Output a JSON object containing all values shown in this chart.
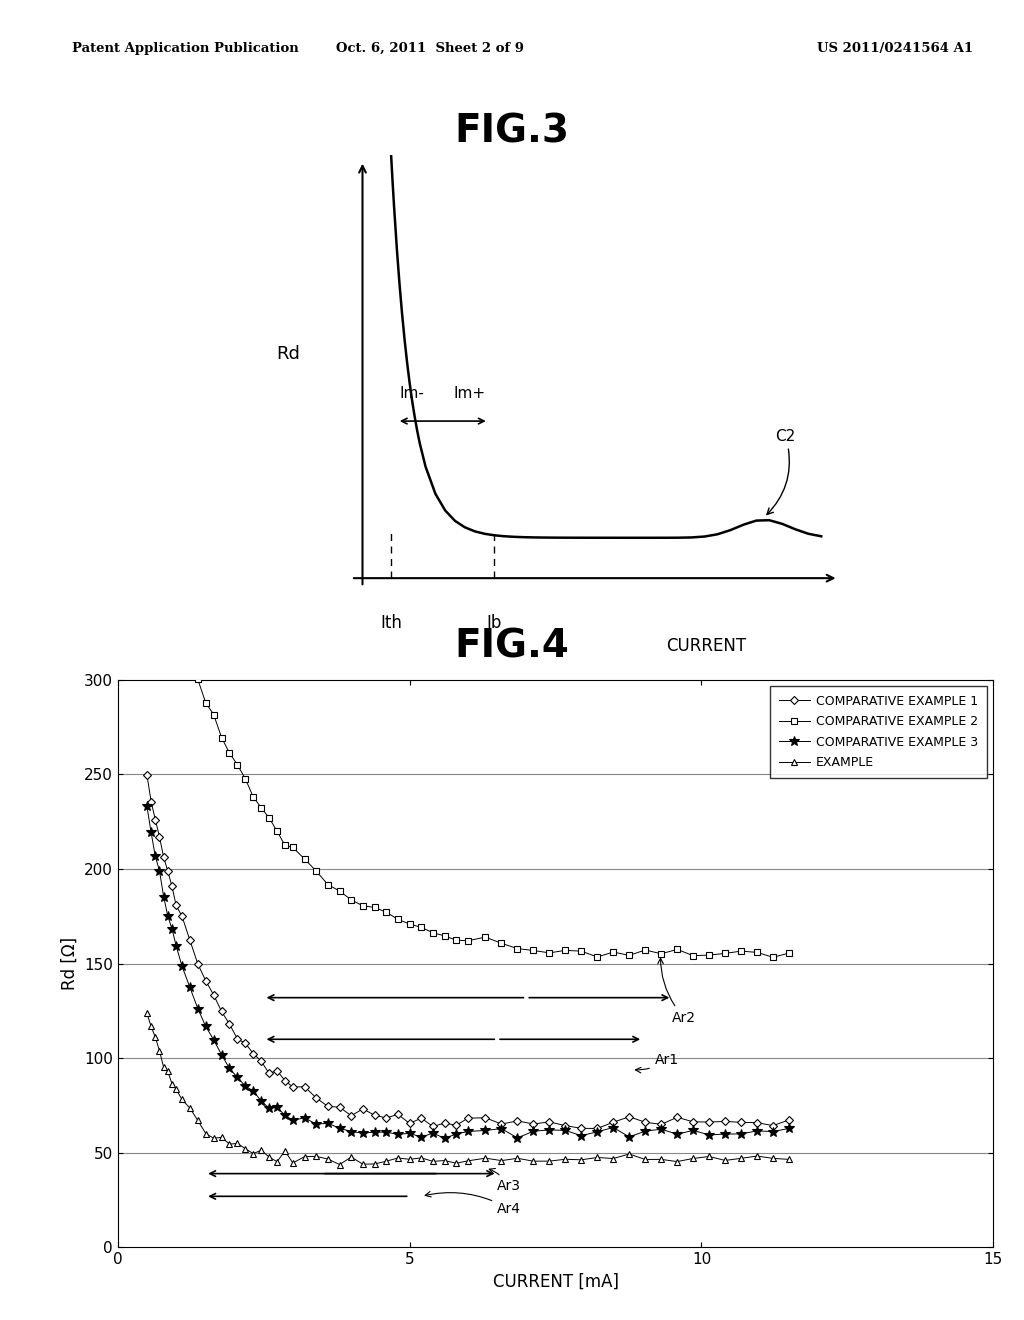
{
  "header_left": "Patent Application Publication",
  "header_mid": "Oct. 6, 2011  Sheet 2 of 9",
  "header_right": "US 2011/0241564 A1",
  "fig3_title": "FIG.3",
  "fig4_title": "FIG.4",
  "fig3_ylabel": "Rd",
  "fig3_xlabel": "CURRENT",
  "fig3_ith_label": "Ith",
  "fig3_ib_label": "Ib",
  "fig3_im_minus": "Im-",
  "fig3_im_plus": "Im+",
  "fig3_c2": "C2",
  "fig4_ylabel": "Rd [Ω]",
  "fig4_xlabel": "CURRENT [mA]",
  "fig4_xlim": [
    0,
    15
  ],
  "fig4_ylim": [
    0,
    300
  ],
  "fig4_yticks": [
    0,
    50,
    100,
    150,
    200,
    250,
    300
  ],
  "fig4_xticks": [
    0,
    5,
    10,
    15
  ],
  "legend_labels": [
    "COMPARATIVE EXAMPLE 1",
    "COMPARATIVE EXAMPLE 2",
    "COMPARATIVE EXAMPLE 3",
    "EXAMPLE"
  ],
  "ar1_label": "Ar1",
  "ar2_label": "Ar2",
  "ar3_label": "Ar3",
  "ar4_label": "Ar4",
  "bg_color": "#ffffff",
  "line_color": "#000000"
}
